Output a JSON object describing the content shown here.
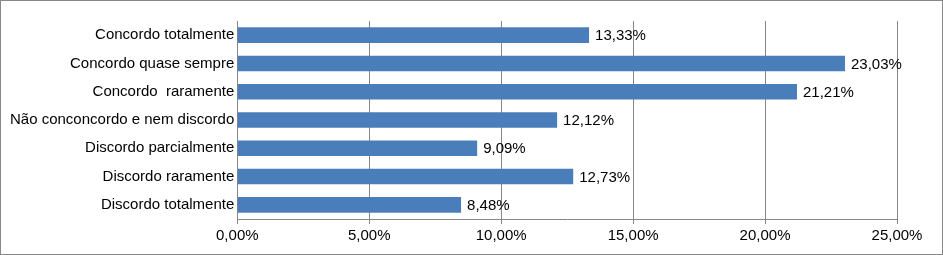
{
  "chart_data": {
    "type": "bar",
    "orientation": "horizontal",
    "categories": [
      "Concordo totalmente",
      "Concordo quase sempre",
      "Concordo  raramente",
      "Não conconcordo e nem discordo",
      "Discordo parcialmente",
      "Discordo raramente",
      "Discordo totalmente"
    ],
    "values": [
      13.33,
      23.03,
      21.21,
      12.12,
      9.09,
      12.73,
      8.48
    ],
    "value_labels": [
      "13,33%",
      "23,03%",
      "21,21%",
      "12,12%",
      "9,09%",
      "12,73%",
      "8,48%"
    ],
    "data_labels": true,
    "color": "#4a7ebb",
    "xlim": [
      0,
      25
    ],
    "xticks": [
      {
        "value": 0,
        "label": "0,00%"
      },
      {
        "value": 5,
        "label": "5,00%"
      },
      {
        "value": 10,
        "label": "10,00%"
      },
      {
        "value": 15,
        "label": "15,00%"
      },
      {
        "value": 20,
        "label": "20,00%"
      },
      {
        "value": 25,
        "label": "25,00%"
      }
    ],
    "grid": true
  }
}
